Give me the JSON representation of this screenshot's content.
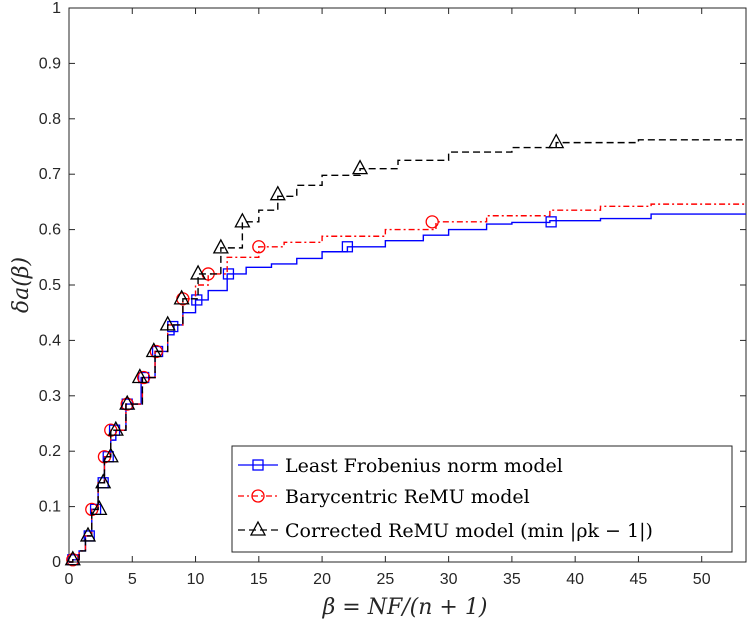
{
  "chart_data": {
    "type": "line",
    "title": "",
    "xlabel": "β = NF/(n + 1)",
    "ylabel": "δa(β)",
    "xlim": [
      0,
      53.5
    ],
    "ylim": [
      0,
      1
    ],
    "xticks": [
      0,
      5,
      10,
      15,
      20,
      25,
      30,
      35,
      40,
      45,
      50
    ],
    "yticks": [
      0,
      0.1,
      0.2,
      0.3,
      0.4,
      0.5,
      0.6,
      0.7,
      0.8,
      0.9,
      1
    ],
    "grid": false,
    "legend_position": "bottom-right",
    "series": [
      {
        "name": "Least Frobenius norm model",
        "color": "#0000ff",
        "dash": "solid",
        "marker": "square",
        "points": [
          [
            0,
            0
          ],
          [
            0.3,
            0.004
          ],
          [
            0.8,
            0.02
          ],
          [
            1.3,
            0.047
          ],
          [
            1.8,
            0.095
          ],
          [
            2.3,
            0.143
          ],
          [
            2.8,
            0.19
          ],
          [
            3.3,
            0.22
          ],
          [
            3.7,
            0.238
          ],
          [
            4.5,
            0.285
          ],
          [
            5.7,
            0.333
          ],
          [
            6.8,
            0.38
          ],
          [
            7.8,
            0.41
          ],
          [
            8.3,
            0.428
          ],
          [
            9,
            0.45
          ],
          [
            10,
            0.473
          ],
          [
            11,
            0.49
          ],
          [
            12.5,
            0.52
          ],
          [
            14,
            0.532
          ],
          [
            16,
            0.538
          ],
          [
            18,
            0.548
          ],
          [
            20,
            0.56
          ],
          [
            22,
            0.569
          ],
          [
            25,
            0.58
          ],
          [
            28,
            0.59
          ],
          [
            30,
            0.6
          ],
          [
            33,
            0.61
          ],
          [
            35,
            0.613
          ],
          [
            38,
            0.616
          ],
          [
            42,
            0.62
          ],
          [
            46,
            0.628
          ],
          [
            53.5,
            0.628
          ]
        ],
        "markers": [
          [
            0.3,
            0.004
          ],
          [
            1.6,
            0.047
          ],
          [
            2.1,
            0.095
          ],
          [
            2.7,
            0.143
          ],
          [
            3.1,
            0.19
          ],
          [
            3.6,
            0.238
          ],
          [
            4.6,
            0.285
          ],
          [
            5.9,
            0.333
          ],
          [
            7.0,
            0.38
          ],
          [
            8.2,
            0.425
          ],
          [
            10.1,
            0.473
          ],
          [
            12.6,
            0.52
          ],
          [
            22,
            0.569
          ],
          [
            38.1,
            0.614
          ]
        ]
      },
      {
        "name": "Barycentric ReMU model",
        "color": "#ff0000",
        "dash": "dashdot",
        "marker": "circle",
        "points": [
          [
            0,
            0
          ],
          [
            0.3,
            0.004
          ],
          [
            0.8,
            0.02
          ],
          [
            1.3,
            0.047
          ],
          [
            1.8,
            0.095
          ],
          [
            2.3,
            0.143
          ],
          [
            2.8,
            0.19
          ],
          [
            3.3,
            0.238
          ],
          [
            4.5,
            0.285
          ],
          [
            5.8,
            0.333
          ],
          [
            6.8,
            0.38
          ],
          [
            7.8,
            0.428
          ],
          [
            9,
            0.475
          ],
          [
            10,
            0.5
          ],
          [
            11,
            0.52
          ],
          [
            12.5,
            0.55
          ],
          [
            15,
            0.569
          ],
          [
            17,
            0.577
          ],
          [
            20,
            0.588
          ],
          [
            25,
            0.6
          ],
          [
            29,
            0.614
          ],
          [
            33,
            0.625
          ],
          [
            38,
            0.635
          ],
          [
            42,
            0.642
          ],
          [
            46,
            0.646
          ],
          [
            53.5,
            0.646
          ]
        ],
        "markers": [
          [
            0.3,
            0.004
          ],
          [
            1.8,
            0.095
          ],
          [
            2.8,
            0.19
          ],
          [
            3.3,
            0.238
          ],
          [
            4.6,
            0.285
          ],
          [
            5.9,
            0.333
          ],
          [
            6.9,
            0.38
          ],
          [
            9.0,
            0.475
          ],
          [
            11.0,
            0.52
          ],
          [
            15.0,
            0.569
          ],
          [
            28.7,
            0.614
          ]
        ]
      },
      {
        "name": "Corrected ReMU model (min |ρk − 1|)",
        "color": "#000000",
        "dash": "dashed",
        "marker": "triangle",
        "points": [
          [
            0,
            0
          ],
          [
            0.3,
            0.004
          ],
          [
            0.8,
            0.02
          ],
          [
            1.3,
            0.047
          ],
          [
            1.8,
            0.095
          ],
          [
            2.3,
            0.143
          ],
          [
            2.8,
            0.19
          ],
          [
            3.3,
            0.238
          ],
          [
            4.5,
            0.285
          ],
          [
            5.8,
            0.333
          ],
          [
            6.8,
            0.38
          ],
          [
            7.8,
            0.428
          ],
          [
            9,
            0.475
          ],
          [
            10.2,
            0.52
          ],
          [
            12,
            0.567
          ],
          [
            13.7,
            0.614
          ],
          [
            15,
            0.635
          ],
          [
            16.5,
            0.66
          ],
          [
            18,
            0.68
          ],
          [
            20,
            0.698
          ],
          [
            23,
            0.71
          ],
          [
            26,
            0.725
          ],
          [
            30,
            0.74
          ],
          [
            35,
            0.748
          ],
          [
            38.5,
            0.757
          ],
          [
            45,
            0.762
          ],
          [
            53.5,
            0.763
          ]
        ],
        "markers": [
          [
            0.3,
            0.004
          ],
          [
            1.5,
            0.047
          ],
          [
            2.4,
            0.095
          ],
          [
            2.7,
            0.143
          ],
          [
            3.3,
            0.19
          ],
          [
            3.7,
            0.238
          ],
          [
            4.6,
            0.285
          ],
          [
            5.6,
            0.333
          ],
          [
            6.7,
            0.38
          ],
          [
            7.8,
            0.428
          ],
          [
            8.9,
            0.475
          ],
          [
            10.2,
            0.52
          ],
          [
            12.0,
            0.567
          ],
          [
            13.7,
            0.614
          ],
          [
            16.5,
            0.663
          ],
          [
            23.0,
            0.71
          ],
          [
            38.5,
            0.757
          ]
        ]
      }
    ]
  }
}
